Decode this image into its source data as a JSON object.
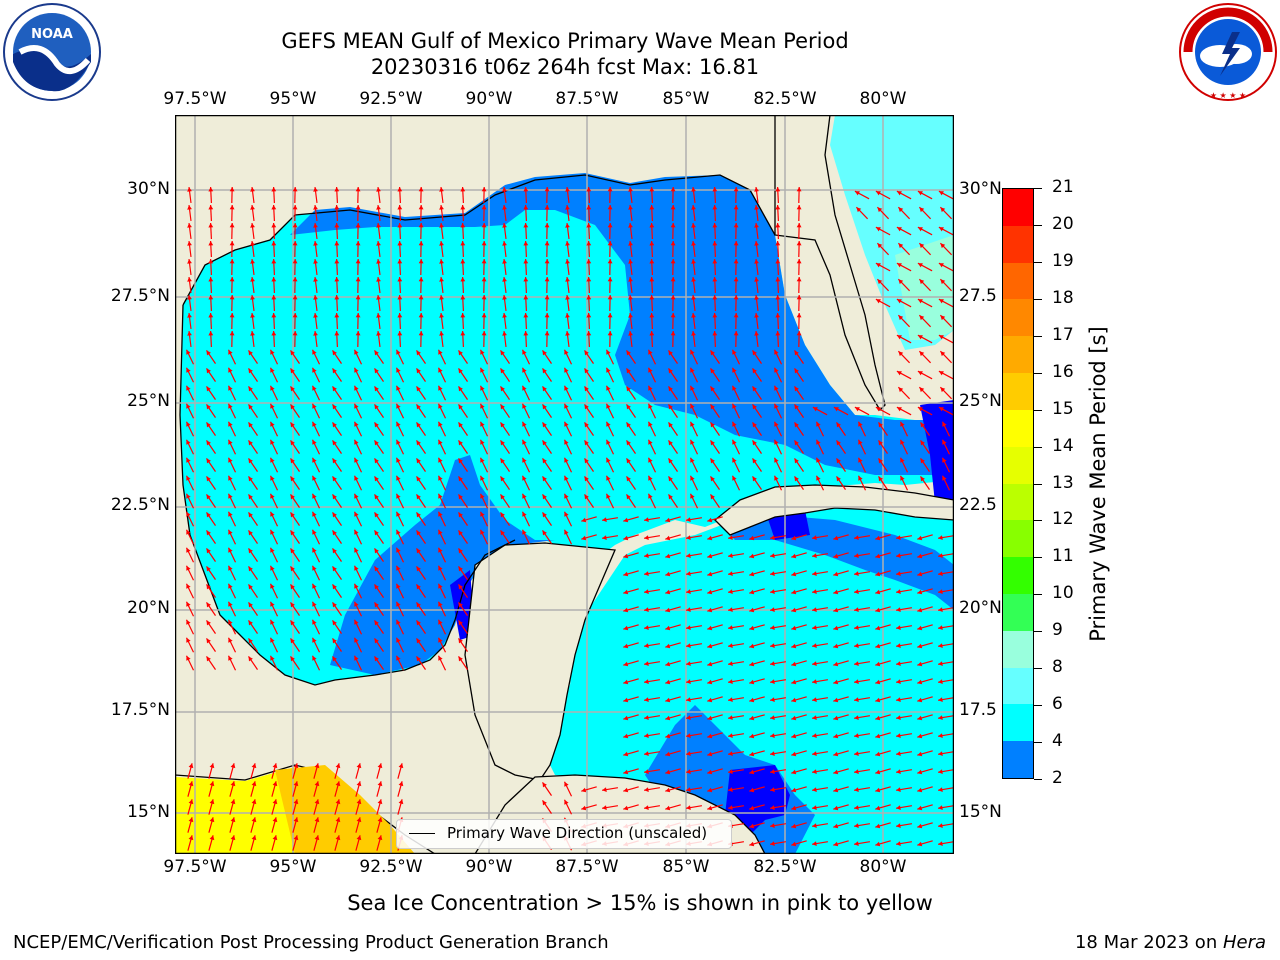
{
  "title": {
    "line1": "GEFS MEAN Gulf of Mexico Primary Wave Mean Period",
    "line2": "20230316 t06z 264h fcst   Max: 16.81"
  },
  "map": {
    "lon_labels": [
      "97.5°W",
      "95°W",
      "92.5°W",
      "90°W",
      "87.5°W",
      "85°W",
      "82.5°W",
      "80°W"
    ],
    "lat_labels_left": [
      "30°N",
      "27.5°N",
      "25°N",
      "22.5°N",
      "20°N",
      "17.5°N",
      "15°N"
    ],
    "lat_labels_right": [
      "30°N",
      "27.5",
      "25°N",
      "22.5",
      "20°N",
      "17.5",
      "15°N"
    ],
    "colors": {
      "land": "#efedd9",
      "coast": "#000000",
      "grid": "#b0b0b0",
      "arrow": "#ff0000"
    },
    "legend_label": "Primary Wave Direction (unscaled)"
  },
  "colorbar": {
    "label": "Primary Wave Mean Period [s]",
    "ticks": [
      "21",
      "20",
      "19",
      "18",
      "17",
      "16",
      "15",
      "14",
      "13",
      "12",
      "11",
      "10",
      "9",
      "8",
      "6",
      "4",
      "2"
    ],
    "colors": [
      "#ff0000",
      "#ff3300",
      "#ff6600",
      "#ff8800",
      "#ffaa00",
      "#ffcc00",
      "#ffff00",
      "#e6ff00",
      "#bbff00",
      "#88ff00",
      "#33ff00",
      "#33ff55",
      "#99ffdd",
      "#66ffff",
      "#00ffff",
      "#0080ff",
      "#0000ff"
    ]
  },
  "caption": "Sea Ice Concentration > 15% is shown in pink to yellow",
  "footer": {
    "left": "NCEP/EMC/Verification Post Processing Product Generation Branch",
    "right_prefix": "18 Mar 2023 on ",
    "right_host": "Hera"
  },
  "logos": {
    "noaa_text": "NOAA",
    "nws_text": "NATIONAL WEATHER SERVICE"
  }
}
